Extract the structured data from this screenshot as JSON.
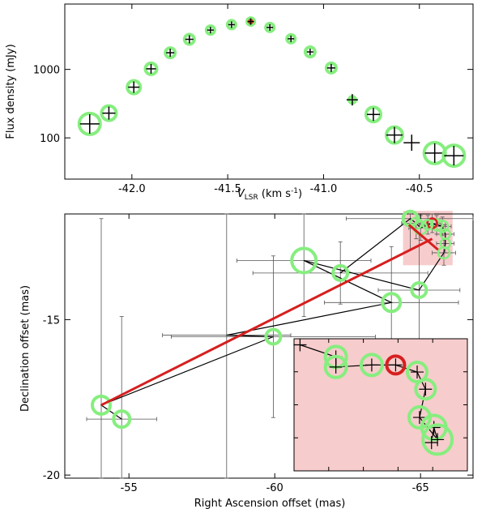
{
  "colors": {
    "ring": "#86ee7f",
    "ring_hi": "#d94a1f",
    "highlight_box": "#f7cccc",
    "trend": "#d61f1f",
    "path": "#000000"
  },
  "chart_data": [
    {
      "type": "scatter",
      "title": "",
      "xlabel": "V_LSR (km s^-1)",
      "xlabel_main": "V",
      "xlabel_sub": "LSR",
      "xlabel_units": " (km s",
      "xlabel_exp": "-1",
      "xlabel_close": ")",
      "ylabel": "Flux density (mJy)",
      "yscale": "log",
      "xlim": [
        -42.35,
        -40.22
      ],
      "ylim": [
        25,
        9000
      ],
      "xticks": [
        -42.0,
        -41.5,
        -41.0,
        -40.5
      ],
      "xtick_labels": [
        "-42.0",
        "-41.5",
        "-41.0",
        "-40.5"
      ],
      "yticks": [
        100,
        1000
      ],
      "ytick_labels": [
        "100",
        "1000"
      ],
      "points": [
        {
          "x": -42.22,
          "y": 160,
          "ring": 13,
          "err": 12
        },
        {
          "x": -42.12,
          "y": 230,
          "ring": 9,
          "err": 8
        },
        {
          "x": -41.99,
          "y": 550,
          "ring": 8,
          "err": 7
        },
        {
          "x": -41.9,
          "y": 1020,
          "ring": 7,
          "err": 6
        },
        {
          "x": -41.8,
          "y": 1750,
          "ring": 6,
          "err": 5
        },
        {
          "x": -41.7,
          "y": 2750,
          "ring": 6,
          "err": 5
        },
        {
          "x": -41.59,
          "y": 3750,
          "ring": 5,
          "err": 4
        },
        {
          "x": -41.48,
          "y": 4500,
          "ring": 5,
          "err": 4
        },
        {
          "x": -41.38,
          "y": 5000,
          "ring": 5,
          "err": 4,
          "highlight": true
        },
        {
          "x": -41.28,
          "y": 4100,
          "ring": 5,
          "err": 4
        },
        {
          "x": -41.17,
          "y": 2800,
          "ring": 5,
          "err": 4
        },
        {
          "x": -41.07,
          "y": 1800,
          "ring": 6,
          "err": 4
        },
        {
          "x": -40.96,
          "y": 1050,
          "ring": 6,
          "err": 5
        },
        {
          "x": -40.85,
          "y": 360,
          "ring": 4,
          "err": 7
        },
        {
          "x": -40.74,
          "y": 220,
          "ring": 9,
          "err": 8
        },
        {
          "x": -40.63,
          "y": 110,
          "ring": 10,
          "err": 10
        },
        {
          "x": -40.54,
          "y": 85,
          "ring": 0,
          "err": 10
        },
        {
          "x": -40.42,
          "y": 60,
          "ring": 13,
          "err": 12
        },
        {
          "x": -40.32,
          "y": 55,
          "ring": 13,
          "err": 12
        }
      ]
    },
    {
      "type": "scatter",
      "title": "",
      "xlabel": "Right Ascension offset (mas)",
      "ylabel": "Declination offset (mas)",
      "xlim": [
        -52.8,
        -66.8
      ],
      "ylim": [
        -20.1,
        -11.6
      ],
      "xticks": [
        -55,
        -60,
        -65
      ],
      "xtick_labels": [
        "-55",
        "-60",
        "-65"
      ],
      "yticks": [
        -15,
        -20
      ],
      "ytick_labels": [
        "-15",
        "-20"
      ],
      "points": [
        {
          "x": -54.05,
          "y": -17.75,
          "ring": 11,
          "ex": 0,
          "ey": 6.0
        },
        {
          "x": -54.75,
          "y": -18.2,
          "ring": 10,
          "ex": 1.2,
          "ey": 3.3
        },
        {
          "x": -58.35,
          "y": -15.5,
          "ring": 0,
          "ex": 2.2,
          "ey": 6.0
        },
        {
          "x": -59.95,
          "y": -15.55,
          "ring": 9,
          "ex": 3.5,
          "ey": 2.6
        },
        {
          "x": -61.0,
          "y": -13.1,
          "ring": 15,
          "ex": 2.3,
          "ey": 1.8
        },
        {
          "x": -62.25,
          "y": -13.5,
          "ring": 9,
          "ex": 3.0,
          "ey": 1.0
        },
        {
          "x": -64.0,
          "y": -14.45,
          "ring": 11,
          "ex": 2.3,
          "ey": 1.8
        },
        {
          "x": -64.95,
          "y": -14.05,
          "ring": 9,
          "ex": 1.4,
          "ey": 1.8
        },
        {
          "x": -65.8,
          "y": -12.85,
          "ring": 7,
          "ex": 0.4,
          "ey": 0.4
        },
        {
          "x": -65.85,
          "y": -12.55,
          "ring": 6,
          "ex": 0.3,
          "ey": 0.3
        },
        {
          "x": -65.85,
          "y": -12.25,
          "ring": 6,
          "ex": 0.3,
          "ey": 0.3
        },
        {
          "x": -65.75,
          "y": -12.0,
          "ring": 7,
          "ex": 0.3,
          "ey": 0.3
        },
        {
          "x": -65.55,
          "y": -11.95,
          "ring": 7,
          "ex": 0.3,
          "ey": 0.3
        },
        {
          "x": -65.4,
          "y": -11.9,
          "ring": 6,
          "ex": 0.3,
          "ey": 0.3,
          "highlight": true
        },
        {
          "x": -65.25,
          "y": -11.95,
          "ring": 6,
          "ex": 0.3,
          "ey": 0.3
        },
        {
          "x": -65.0,
          "y": -12.05,
          "ring": 8,
          "ex": 0.4,
          "ey": 0.4
        },
        {
          "x": -64.85,
          "y": -11.9,
          "ring": 7,
          "ex": 0.5,
          "ey": 0.5
        },
        {
          "x": -64.65,
          "y": -11.75,
          "ring": 9,
          "ex": 2.2,
          "ey": 1.0
        }
      ],
      "path_order": [
        1,
        0,
        3,
        2,
        6,
        4,
        7,
        8,
        9,
        10,
        11,
        12,
        13,
        14,
        15,
        16,
        17,
        5
      ],
      "trend_line": [
        {
          "x": -54.05,
          "y": -17.75
        },
        {
          "x": -65.4,
          "y": -12.4
        }
      ],
      "trend_tick": [
        {
          "x": -64.6,
          "y": -11.95
        },
        {
          "x": -65.6,
          "y": -12.75
        }
      ],
      "highlight_region": {
        "x": [
          -64.4,
          -66.1
        ],
        "y": [
          -11.5,
          -13.25
        ]
      },
      "inset": {
        "xlim": [
          -64.55,
          -66.0
        ],
        "ylim": [
          -11.72,
          -13.03
        ],
        "points": [
          {
            "x": -64.6,
            "y": -11.78,
            "ring": 0
          },
          {
            "x": -64.9,
            "y": -11.9,
            "ring": 13
          },
          {
            "x": -64.9,
            "y": -12.0,
            "ring": 13
          },
          {
            "x": -65.2,
            "y": -11.98,
            "ring": 13
          },
          {
            "x": -65.4,
            "y": -11.98,
            "ring": 11,
            "highlight": true
          },
          {
            "x": -65.58,
            "y": -12.05,
            "ring": 12
          },
          {
            "x": -65.65,
            "y": -12.22,
            "ring": 12
          },
          {
            "x": -65.6,
            "y": -12.5,
            "ring": 13
          },
          {
            "x": -65.72,
            "y": -12.6,
            "ring": 15
          },
          {
            "x": -65.75,
            "y": -12.72,
            "ring": 18
          },
          {
            "x": -65.7,
            "y": -12.75,
            "ring": 0
          }
        ],
        "path_order": [
          0,
          1,
          2,
          3,
          4,
          5,
          6,
          7,
          9,
          8,
          10
        ]
      }
    }
  ]
}
